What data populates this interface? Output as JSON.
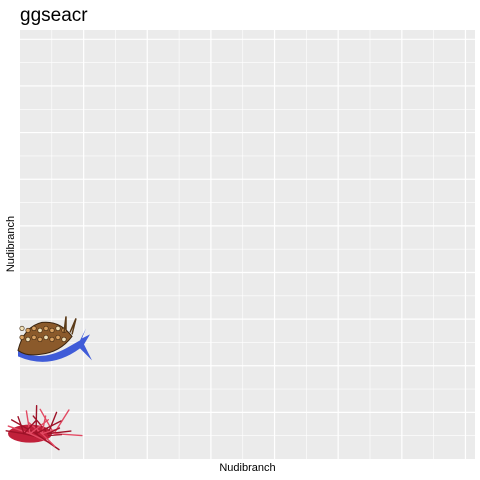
{
  "chart_data": {
    "type": "scatter",
    "title": "ggseacr",
    "xlabel": "Nudibranch",
    "ylabel": "Nudibranch",
    "grid": true,
    "legend": "none",
    "panel_color": "#ebebeb",
    "grid_color": "#ffffff",
    "major_grid_x": [
      2,
      4,
      6,
      8,
      10,
      12,
      14
    ],
    "major_grid_y": [
      2,
      4,
      6,
      8,
      10,
      12,
      14,
      16,
      18
    ],
    "xlim": [
      0,
      14.3
    ],
    "ylim": [
      0,
      18.4
    ],
    "series": [
      {
        "points": [
          {
            "x": 0,
            "y": 1,
            "icon": "red-nudibranch-icon",
            "color": "#c0203a"
          },
          {
            "x": 0,
            "y": 5,
            "icon": "brown-blue-nudibranch-icon",
            "color": "#8b5a2b",
            "accent": "#3f5bd8"
          }
        ]
      }
    ]
  }
}
